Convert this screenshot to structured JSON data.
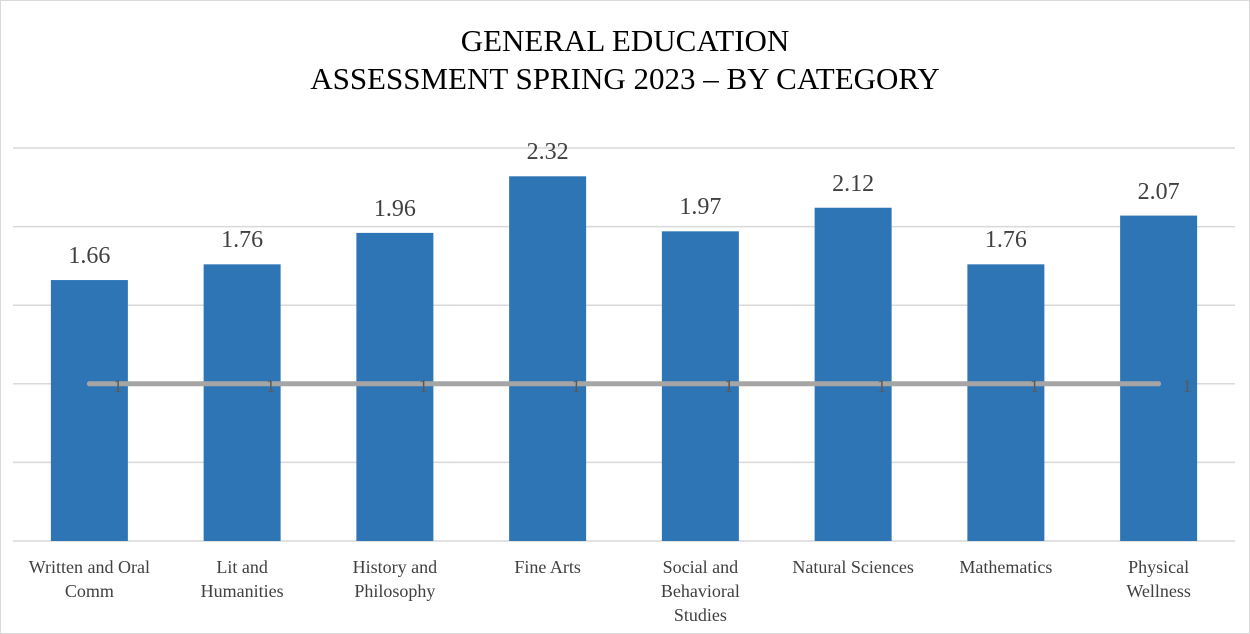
{
  "chart_data": {
    "type": "bar",
    "title": "GENERAL EDUCATION\nASSESSMENT SPRING 2023 – BY CATEGORY",
    "categories": [
      "Written and Oral\nComm",
      "Lit and\nHumanities",
      "History and\nPhilosophy",
      "Fine Arts",
      "Social and\nBehavioral\nStudies",
      "Natural Sciences",
      "Mathematics",
      "Physical\nWellness"
    ],
    "series": [
      {
        "color": "#2e75b6",
        "values": [
          1.66,
          1.76,
          1.96,
          2.32,
          1.97,
          2.12,
          1.76,
          2.07
        ]
      },
      {
        "type": "line",
        "color": "#a5a5a5",
        "values": [
          1,
          1,
          1,
          1,
          1,
          1,
          1,
          1
        ]
      }
    ],
    "ylim": [
      0,
      2.5
    ],
    "yticks": [
      0,
      0.5,
      1,
      1.5,
      2,
      2.5
    ],
    "grid": true
  }
}
